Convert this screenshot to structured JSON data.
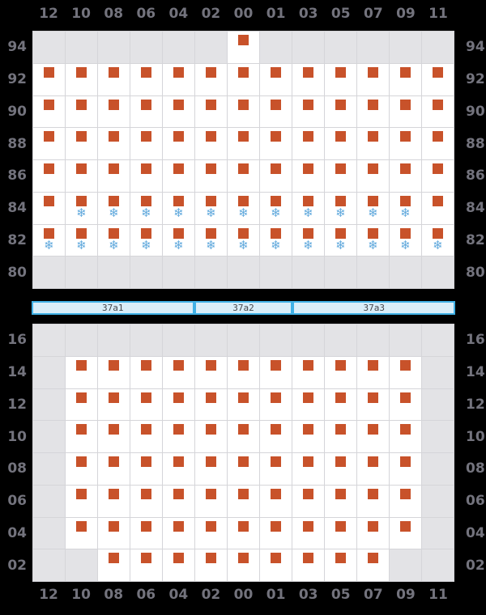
{
  "colors": {
    "page_bg": "#000000",
    "axis_label": "#73737d",
    "grid_line": "#d5d5d9",
    "cell_filled": "#ffffff",
    "cell_empty": "#e3e3e6",
    "square": "#c8522a",
    "snowflake": "#5fa8dc",
    "bar_fill": "#daeef9",
    "bar_border": "#41b1e6",
    "bar_label": "#45464c"
  },
  "icons": {
    "snowflake": "❄"
  },
  "chart_data": {
    "type": "heatmap",
    "cell_legend": {
      "S": "orange-square",
      "SF": "orange-square-with-blue-snowflake",
      "E": "empty-gray-cell"
    },
    "columns": [
      "12",
      "10",
      "08",
      "06",
      "04",
      "02",
      "00",
      "01",
      "03",
      "05",
      "07",
      "09",
      "11"
    ],
    "top_chart": {
      "row_labels": [
        "94",
        "92",
        "90",
        "88",
        "86",
        "84",
        "82",
        "80"
      ],
      "rows": [
        [
          "E",
          "E",
          "E",
          "E",
          "E",
          "E",
          "S",
          "E",
          "E",
          "E",
          "E",
          "E",
          "E"
        ],
        [
          "S",
          "S",
          "S",
          "S",
          "S",
          "S",
          "S",
          "S",
          "S",
          "S",
          "S",
          "S",
          "S"
        ],
        [
          "S",
          "S",
          "S",
          "S",
          "S",
          "S",
          "S",
          "S",
          "S",
          "S",
          "S",
          "S",
          "S"
        ],
        [
          "S",
          "S",
          "S",
          "S",
          "S",
          "S",
          "S",
          "S",
          "S",
          "S",
          "S",
          "S",
          "S"
        ],
        [
          "S",
          "S",
          "S",
          "S",
          "S",
          "S",
          "S",
          "S",
          "S",
          "S",
          "S",
          "S",
          "S"
        ],
        [
          "S",
          "SF",
          "SF",
          "SF",
          "SF",
          "SF",
          "SF",
          "SF",
          "SF",
          "SF",
          "SF",
          "SF",
          "S"
        ],
        [
          "SF",
          "SF",
          "SF",
          "SF",
          "SF",
          "SF",
          "SF",
          "SF",
          "SF",
          "SF",
          "SF",
          "SF",
          "SF"
        ],
        [
          "E",
          "E",
          "E",
          "E",
          "E",
          "E",
          "E",
          "E",
          "E",
          "E",
          "E",
          "E",
          "E"
        ]
      ]
    },
    "segment_bar": {
      "segments": [
        {
          "label": "37a1",
          "columns": 5
        },
        {
          "label": "37a2",
          "columns": 3
        },
        {
          "label": "37a3",
          "columns": 5
        }
      ]
    },
    "bottom_chart": {
      "row_labels": [
        "16",
        "14",
        "12",
        "10",
        "08",
        "06",
        "04",
        "02"
      ],
      "rows": [
        [
          "E",
          "E",
          "E",
          "E",
          "E",
          "E",
          "E",
          "E",
          "E",
          "E",
          "E",
          "E",
          "E"
        ],
        [
          "E",
          "S",
          "S",
          "S",
          "S",
          "S",
          "S",
          "S",
          "S",
          "S",
          "S",
          "S",
          "E"
        ],
        [
          "E",
          "S",
          "S",
          "S",
          "S",
          "S",
          "S",
          "S",
          "S",
          "S",
          "S",
          "S",
          "E"
        ],
        [
          "E",
          "S",
          "S",
          "S",
          "S",
          "S",
          "S",
          "S",
          "S",
          "S",
          "S",
          "S",
          "E"
        ],
        [
          "E",
          "S",
          "S",
          "S",
          "S",
          "S",
          "S",
          "S",
          "S",
          "S",
          "S",
          "S",
          "E"
        ],
        [
          "E",
          "S",
          "S",
          "S",
          "S",
          "S",
          "S",
          "S",
          "S",
          "S",
          "S",
          "S",
          "E"
        ],
        [
          "E",
          "S",
          "S",
          "S",
          "S",
          "S",
          "S",
          "S",
          "S",
          "S",
          "S",
          "S",
          "E"
        ],
        [
          "E",
          "E",
          "S",
          "S",
          "S",
          "S",
          "S",
          "S",
          "S",
          "S",
          "S",
          "E",
          "E"
        ]
      ]
    }
  }
}
